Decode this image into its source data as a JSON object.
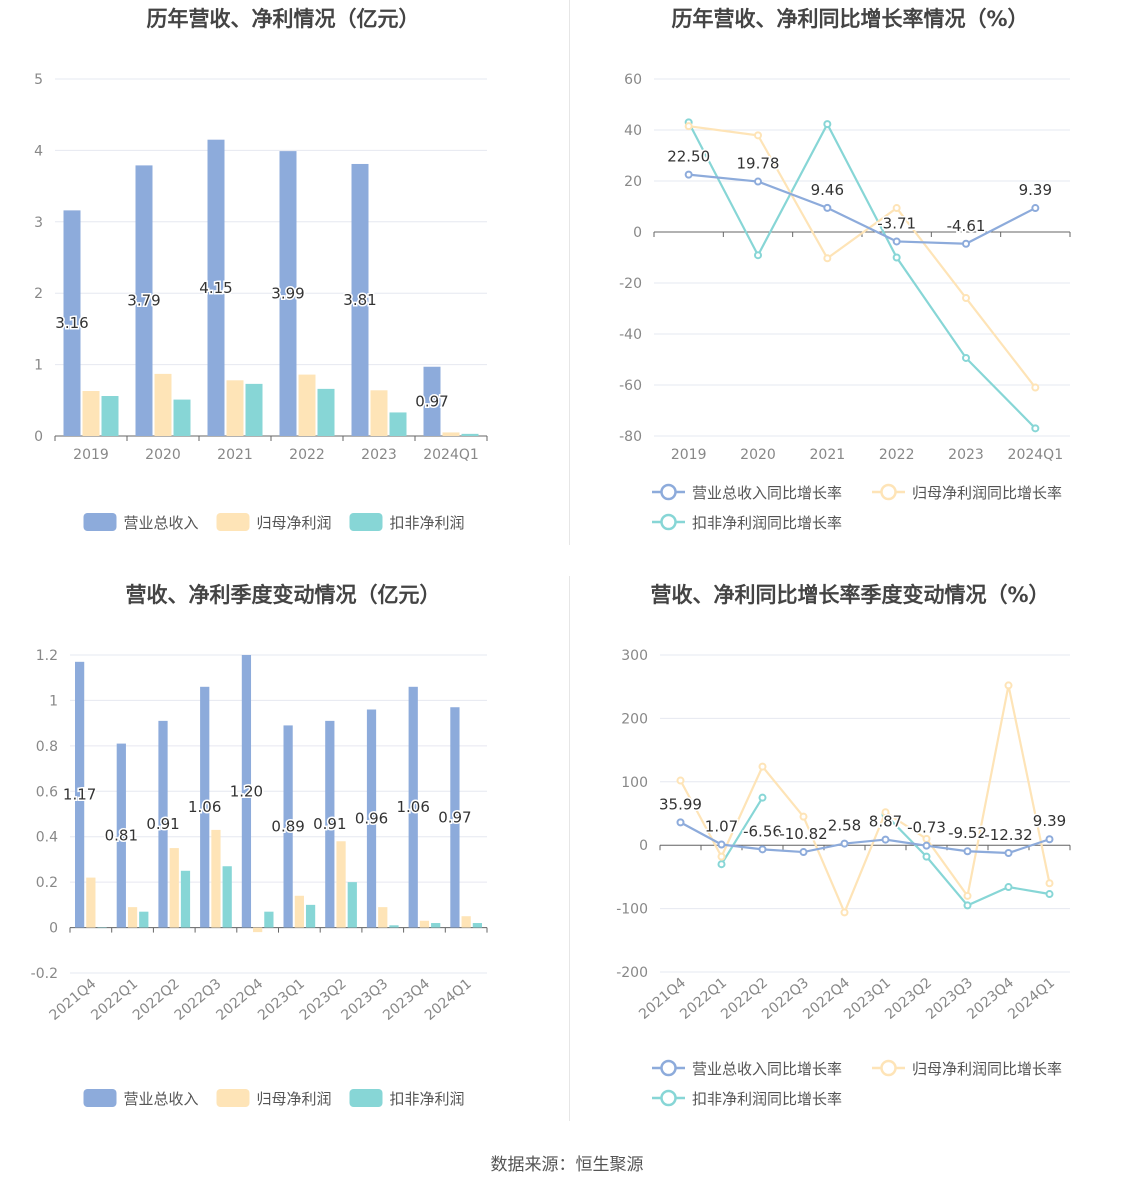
{
  "source": "数据来源：恒生聚源",
  "colors": {
    "revenue": "#8dabdb",
    "parent_np": "#fee4b7",
    "deducted_np": "#87d6d6",
    "grid": "#e6e8f0",
    "axis_text": "#888888",
    "title": "#444444"
  },
  "chart_data": [
    {
      "type": "bar",
      "title": "历年营收、净利情况（亿元）",
      "categories": [
        "2019",
        "2020",
        "2021",
        "2022",
        "2023",
        "2024Q1"
      ],
      "ylim": [
        0,
        5
      ],
      "yticks": [
        "0",
        "1",
        "2",
        "3",
        "4",
        "5"
      ],
      "series": [
        {
          "name": "营业总收入",
          "color": "#8dabdb",
          "values": [
            3.16,
            3.79,
            4.15,
            3.99,
            3.81,
            0.97
          ],
          "labels": [
            "3.16",
            "3.79",
            "4.15",
            "3.99",
            "3.81",
            "0.97"
          ]
        },
        {
          "name": "归母净利润",
          "color": "#fee4b7",
          "values": [
            0.63,
            0.87,
            0.78,
            0.86,
            0.64,
            0.05
          ]
        },
        {
          "name": "扣非净利润",
          "color": "#87d6d6",
          "values": [
            0.56,
            0.51,
            0.73,
            0.66,
            0.33,
            0.03
          ]
        }
      ],
      "legend": "bottom"
    },
    {
      "type": "line",
      "title": "历年营收、净利同比增长率情况（%）",
      "categories": [
        "2019",
        "2020",
        "2021",
        "2022",
        "2023",
        "2024Q1"
      ],
      "ylim": [
        -80,
        60
      ],
      "yticks": [
        "-80",
        "-60",
        "-40",
        "-20",
        "0",
        "20",
        "40",
        "60"
      ],
      "series": [
        {
          "name": "营业总收入同比增长率",
          "color": "#8dabdb",
          "values": [
            22.5,
            19.78,
            9.46,
            -3.71,
            -4.61,
            9.39
          ],
          "labels": [
            "22.50",
            "19.78",
            "9.46",
            "-3.71",
            "-4.61",
            "9.39"
          ]
        },
        {
          "name": "归母净利润同比增长率",
          "color": "#fee4b7",
          "values": [
            41.5,
            37.9,
            -10.3,
            9.4,
            -25.9,
            -61.0
          ]
        },
        {
          "name": "扣非净利润同比增长率",
          "color": "#87d6d6",
          "values": [
            43.0,
            -9.1,
            42.3,
            -10.0,
            -49.4,
            -77.0
          ]
        }
      ],
      "legend": "bottom"
    },
    {
      "type": "bar",
      "title": "营收、净利季度变动情况（亿元）",
      "categories": [
        "2021Q4",
        "2022Q1",
        "2022Q2",
        "2022Q3",
        "2022Q4",
        "2023Q1",
        "2023Q2",
        "2023Q3",
        "2023Q4",
        "2024Q1"
      ],
      "ylim": [
        -0.2,
        1.2
      ],
      "yticks": [
        "-0.2",
        "0",
        "0.2",
        "0.4",
        "0.6",
        "0.8",
        "1",
        "1.2"
      ],
      "series": [
        {
          "name": "营业总收入",
          "color": "#8dabdb",
          "values": [
            1.17,
            0.81,
            0.91,
            1.06,
            1.2,
            0.89,
            0.91,
            0.96,
            1.06,
            0.97
          ],
          "labels": [
            "1.17",
            "0.81",
            "0.91",
            "1.06",
            "1.20",
            "0.89",
            "0.91",
            "0.96",
            "1.06",
            "0.97"
          ]
        },
        {
          "name": "归母净利润",
          "color": "#fee4b7",
          "values": [
            0.22,
            0.09,
            0.35,
            0.43,
            -0.02,
            0.14,
            0.38,
            0.09,
            0.03,
            0.05
          ]
        },
        {
          "name": "扣非净利润",
          "color": "#87d6d6",
          "values": [
            0.0,
            0.07,
            0.25,
            0.27,
            0.07,
            0.1,
            0.2,
            0.01,
            0.02,
            0.02
          ]
        }
      ],
      "legend": "bottom"
    },
    {
      "type": "line",
      "title": "营收、净利同比增长率季度变动情况（%）",
      "categories": [
        "2021Q4",
        "2022Q1",
        "2022Q2",
        "2022Q3",
        "2022Q4",
        "2023Q1",
        "2023Q2",
        "2023Q3",
        "2023Q4",
        "2024Q1"
      ],
      "ylim": [
        -200,
        300
      ],
      "yticks": [
        "-200",
        "-100",
        "0",
        "100",
        "200",
        "300"
      ],
      "series": [
        {
          "name": "营业总收入同比增长率",
          "color": "#8dabdb",
          "values": [
            35.99,
            1.07,
            -6.56,
            -10.82,
            2.58,
            8.87,
            -0.73,
            -9.52,
            -12.32,
            9.39
          ],
          "labels": [
            "35.99",
            "1.07",
            "-6.56",
            "-10.82",
            "2.58",
            "8.87",
            "-0.73",
            "-9.52",
            "-12.32",
            "9.39"
          ]
        },
        {
          "name": "归母净利润同比增长率",
          "color": "#fee4b7",
          "values": [
            102,
            -18,
            124,
            45,
            -106,
            52,
            10,
            -80,
            252,
            -60
          ]
        },
        {
          "name": "扣非净利润同比增长率",
          "color": "#87d6d6",
          "values": [
            null,
            -30,
            75,
            null,
            null,
            48,
            -18,
            -95,
            -66,
            -77
          ]
        }
      ],
      "legend": "bottom"
    }
  ]
}
